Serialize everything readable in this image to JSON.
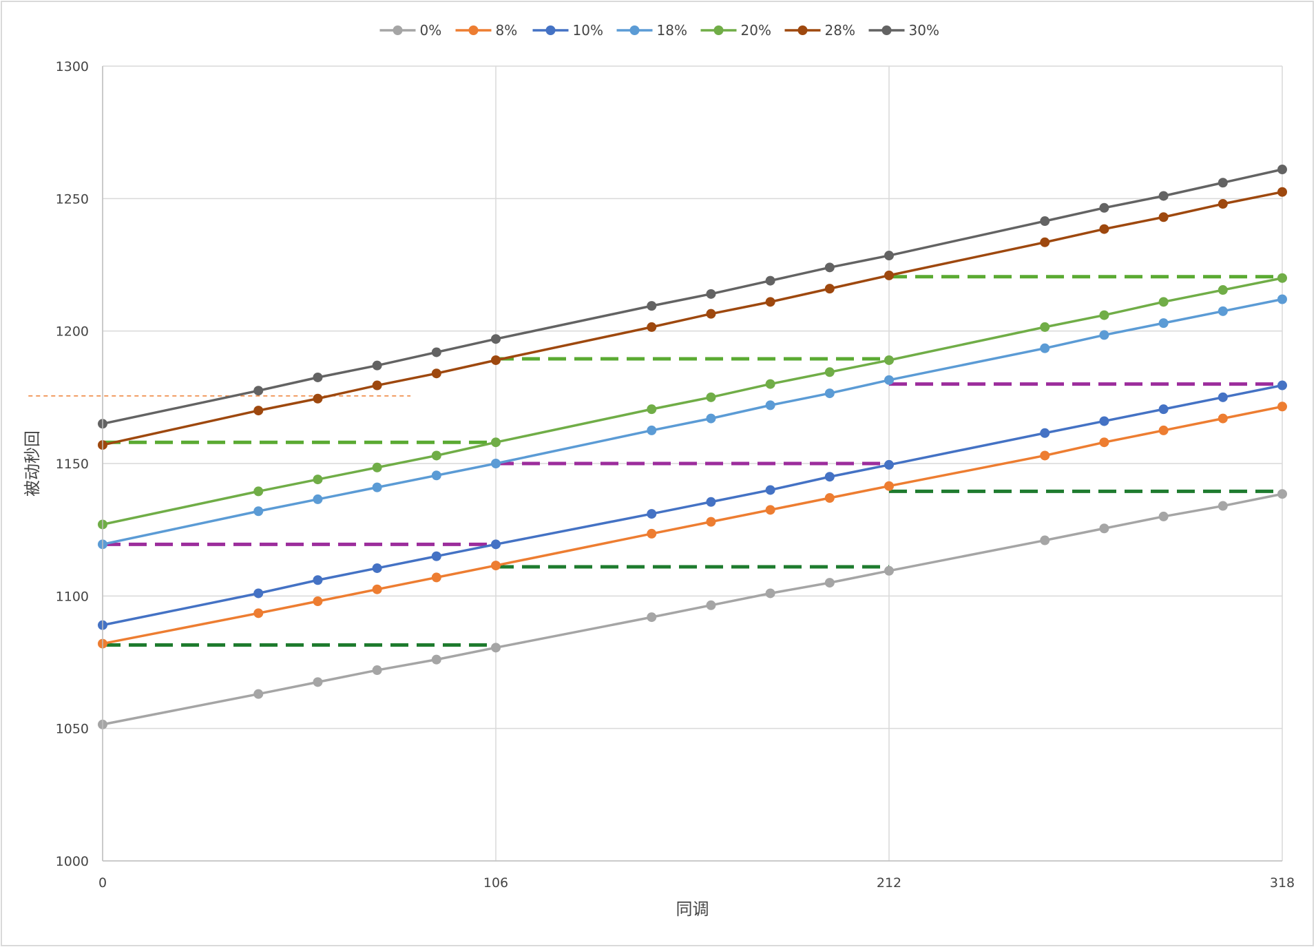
{
  "chart_data": {
    "type": "line",
    "xlabel": "同调",
    "ylabel": "被动秒回",
    "xlim": [
      0,
      318
    ],
    "ylim": [
      1000,
      1300
    ],
    "x_ticks": [
      "0",
      "106",
      "212",
      "318"
    ],
    "y_ticks": [
      "1000",
      "1050",
      "1100",
      "1150",
      "1200",
      "1250",
      "1300"
    ],
    "grid": true,
    "legend_position": "top",
    "x": [
      0,
      42,
      58,
      74,
      90,
      106,
      148,
      164,
      180,
      196,
      212,
      254,
      270,
      286,
      302,
      318
    ],
    "series": [
      {
        "name": "0%",
        "color": "#a5a5a5",
        "values": [
          1051.5,
          1063,
          1067.5,
          1072,
          1076,
          1080.5,
          1092,
          1096.5,
          1101,
          1105,
          1109.5,
          1121,
          1125.5,
          1130,
          1134,
          1138.5
        ]
      },
      {
        "name": "8%",
        "color": "#ed7d31",
        "values": [
          1082,
          1093.5,
          1098,
          1102.5,
          1107,
          1111.5,
          1123.5,
          1128,
          1132.5,
          1137,
          1141.5,
          1153,
          1158,
          1162.5,
          1167,
          1171.5
        ]
      },
      {
        "name": "10%",
        "color": "#4472c4",
        "values": [
          1089,
          1101,
          1106,
          1110.5,
          1115,
          1119.5,
          1131,
          1135.5,
          1140,
          1145,
          1149.5,
          1161.5,
          1166,
          1170.5,
          1175,
          1179.5
        ]
      },
      {
        "name": "18%",
        "color": "#5b9bd5",
        "values": [
          1119.5,
          1132,
          1136.5,
          1141,
          1145.5,
          1150,
          1162.5,
          1167,
          1172,
          1176.5,
          1181.5,
          1193.5,
          1198.5,
          1203,
          1207.5,
          1212
        ]
      },
      {
        "name": "20%",
        "color": "#70ad47",
        "values": [
          1127,
          1139.5,
          1144,
          1148.5,
          1153,
          1158,
          1170.5,
          1175,
          1180,
          1184.5,
          1189,
          1201.5,
          1206,
          1211,
          1215.5,
          1220
        ]
      },
      {
        "name": "28%",
        "color": "#9e480e",
        "values": [
          1157,
          1170,
          1174.5,
          1179.5,
          1184,
          1189,
          1201.5,
          1206.5,
          1211,
          1216,
          1221,
          1233.5,
          1238.5,
          1243,
          1248,
          1252.5
        ]
      },
      {
        "name": "30%",
        "color": "#636363",
        "values": [
          1165,
          1177.5,
          1182.5,
          1187,
          1192,
          1197,
          1209.5,
          1214,
          1219,
          1224,
          1228.5,
          1241.5,
          1246.5,
          1251,
          1256,
          1261
        ]
      }
    ],
    "reference_lines": [
      {
        "color": "#1e7b2e",
        "dash": "long",
        "x": [
          0,
          106
        ],
        "y": 1081.5
      },
      {
        "color": "#1e7b2e",
        "dash": "long",
        "x": [
          106,
          212
        ],
        "y": 1111
      },
      {
        "color": "#1e7b2e",
        "dash": "long",
        "x": [
          212,
          318
        ],
        "y": 1139.5
      },
      {
        "color": "#9c2d9c",
        "dash": "long",
        "x": [
          0,
          106
        ],
        "y": 1119.5
      },
      {
        "color": "#9c2d9c",
        "dash": "long",
        "x": [
          106,
          212
        ],
        "y": 1150
      },
      {
        "color": "#9c2d9c",
        "dash": "long",
        "x": [
          212,
          318
        ],
        "y": 1180
      },
      {
        "color": "#5aaa32",
        "dash": "long",
        "x": [
          0,
          106
        ],
        "y": 1158
      },
      {
        "color": "#5aaa32",
        "dash": "long",
        "x": [
          106,
          212
        ],
        "y": 1189.5
      },
      {
        "color": "#5aaa32",
        "dash": "long",
        "x": [
          212,
          318
        ],
        "y": 1220.5
      },
      {
        "color": "#ed7d31",
        "dash": "short",
        "x": [
          -20,
          83
        ],
        "y": 1175.5
      }
    ],
    "chart_border_color": "#d9d9d9",
    "gridline_color": "#d9d9d9"
  }
}
